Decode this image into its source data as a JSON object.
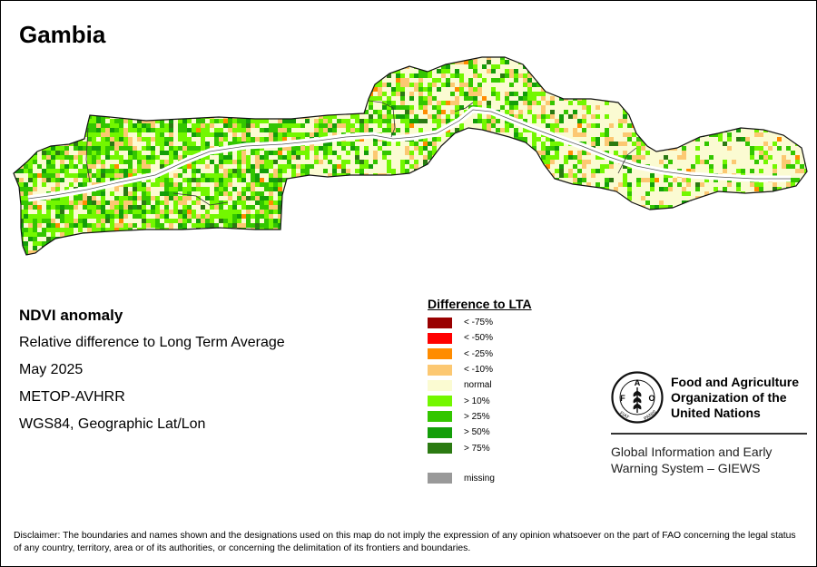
{
  "map": {
    "title": "Gambia"
  },
  "info": {
    "product": "NDVI anomaly",
    "description": "Relative difference to Long Term Average",
    "period": "May 2025",
    "sensor": "METOP-AVHRR",
    "projection": "WGS84, Geographic Lat/Lon"
  },
  "legend": {
    "title": "Difference to LTA",
    "classes": [
      {
        "label": "< -75%",
        "color": "#990000"
      },
      {
        "label": "< -50%",
        "color": "#ff0000"
      },
      {
        "label": "< -25%",
        "color": "#ff8c00"
      },
      {
        "label": "< -10%",
        "color": "#fcc872"
      },
      {
        "label": "normal",
        "color": "#fbfbd2"
      },
      {
        "label": "> 10%",
        "color": "#73f700"
      },
      {
        "label": "> 25%",
        "color": "#33c600"
      },
      {
        "label": "> 50%",
        "color": "#139e09"
      },
      {
        "label": "> 75%",
        "color": "#2b7a12"
      }
    ],
    "missing": {
      "label": "missing",
      "color": "#999999"
    }
  },
  "logo": {
    "org_line1": "Food and Agriculture",
    "org_line2": "Organization of the",
    "org_line3": "United Nations",
    "logo_text": "FAO",
    "logo_motto_left": "FIAT",
    "logo_motto_right": "PANIS",
    "system_line1": "Global Information and Early",
    "system_line2": "Warning System – GIEWS"
  },
  "disclaimer": "Disclaimer: The boundaries and names shown and the designations used on this map do not imply the expression of any opinion whatsoever on the part of FAO concerning the legal status of any country, territory, area or of its authorities, or concerning the delimitation of its frontiers and boundaries."
}
